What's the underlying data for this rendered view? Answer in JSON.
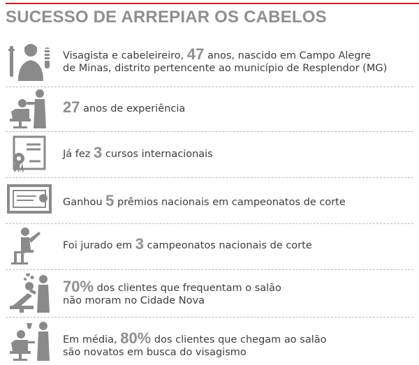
{
  "title": "SUCESSO DE ARREPIAR OS CABELOS",
  "colors": {
    "accent_rule": "#c8232c",
    "title": "#8f8f8f",
    "highlight": "#8f8f8f",
    "icon": "#8a8a8a",
    "text": "#3d3d3d"
  },
  "items": [
    {
      "icon": "barber-person-icon",
      "line1_pre": "Visagista e cabeleireiro, ",
      "line1_num": "47",
      "line1_post": " anos, nascido em Campo Alegre",
      "line2": "de Minas, distrito pertencente ao município de Resplendor (MG)"
    },
    {
      "icon": "haircut-scene-icon",
      "pre": "",
      "num": "27",
      "post": " anos de experiência"
    },
    {
      "icon": "certificate-icon",
      "pre": "Já fez ",
      "num": "3",
      "post": " cursos internacionais"
    },
    {
      "icon": "diploma-frame-icon",
      "pre": "Ganhou ",
      "num": "5",
      "post": " prêmios nacionais em campeonatos de corte"
    },
    {
      "icon": "judge-seated-icon",
      "pre": "Foi jurado em ",
      "num": "3",
      "post": " campeonatos nacionais de corte"
    },
    {
      "icon": "hair-wash-icon",
      "line1_pre": "",
      "line1_num": "70%",
      "line1_post": " dos clientes que frequentam o salão",
      "line2": "não moram no Cidade Nova"
    },
    {
      "icon": "barber-chair-icon",
      "line1_pre": "Em média, ",
      "line1_num": "80%",
      "line1_post": " dos clientes que chegam ao salão",
      "line2": "são novatos em busca do visagismo"
    }
  ]
}
